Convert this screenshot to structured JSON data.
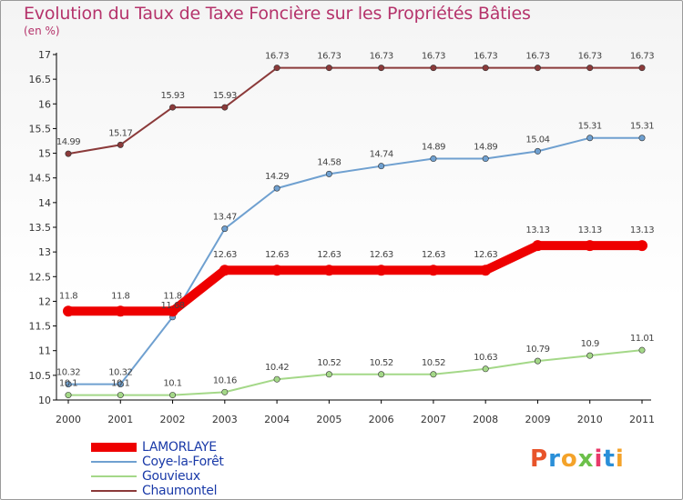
{
  "title": "Evolution du Taux de Taxe Foncière sur les Propriétés Bâties",
  "subtitle": "(en %)",
  "logo": {
    "text": "Proxiti",
    "colors": [
      "#e8542a",
      "#2a8fd8",
      "#f4a32a",
      "#6cc04a",
      "#e83a6a",
      "#2a8fd8",
      "#f4a32a"
    ]
  },
  "chart_data": {
    "type": "line",
    "title": "Evolution du Taux de Taxe Foncière sur les Propriétés Bâties",
    "ylabel": "(en %)",
    "xlabel": "",
    "x": [
      "2000",
      "2001",
      "2002",
      "2003",
      "2004",
      "2005",
      "2006",
      "2007",
      "2008",
      "2009",
      "2010",
      "2011"
    ],
    "ylim": [
      10,
      17
    ],
    "yticks": [
      "10",
      "10.5",
      "11",
      "11.5",
      "12",
      "12.5",
      "13",
      "13.5",
      "14",
      "14.5",
      "15",
      "15.5",
      "16",
      "16.5",
      "17"
    ],
    "grid": false,
    "legend": "bottom-left",
    "series": [
      {
        "name": "LAMORLAYE",
        "color": "#ee0000",
        "width": 10,
        "values": [
          11.8,
          11.8,
          11.8,
          12.63,
          12.63,
          12.63,
          12.63,
          12.63,
          12.63,
          13.13,
          13.13,
          13.13
        ],
        "labels": [
          "11.8",
          "11.8",
          "11.8",
          "12.63",
          "12.63",
          "12.63",
          "12.63",
          "12.63",
          "12.63",
          "13.13",
          "13.13",
          "13.13"
        ]
      },
      {
        "name": "Coye-la-Forêt",
        "color": "#6fa0d0",
        "width": 2,
        "values": [
          10.32,
          10.32,
          11.68,
          13.47,
          14.29,
          14.58,
          14.74,
          14.89,
          14.89,
          15.04,
          15.31,
          15.31
        ],
        "labels": [
          "10.32",
          "10.32",
          "11.68",
          "13.47",
          "14.29",
          "14.58",
          "14.74",
          "14.89",
          "14.89",
          "15.04",
          "15.31",
          "15.31"
        ]
      },
      {
        "name": "Gouvieux",
        "color": "#a4d888",
        "width": 2,
        "values": [
          10.1,
          10.1,
          10.1,
          10.16,
          10.42,
          10.52,
          10.52,
          10.52,
          10.63,
          10.79,
          10.9,
          11.01
        ],
        "labels": [
          "10.1",
          "10.1",
          "10.1",
          "10.16",
          "10.42",
          "10.52",
          "10.52",
          "10.52",
          "10.63",
          "10.79",
          "10.9",
          "11.01"
        ]
      },
      {
        "name": "Chaumontel",
        "color": "#8b3a3a",
        "width": 2,
        "values": [
          14.99,
          15.17,
          15.93,
          15.93,
          16.73,
          16.73,
          16.73,
          16.73,
          16.73,
          16.73,
          16.73,
          16.73
        ],
        "labels": [
          "14.99",
          "15.17",
          "15.93",
          "15.93",
          "16.73",
          "16.73",
          "16.73",
          "16.73",
          "16.73",
          "16.73",
          "16.73",
          "16.73"
        ]
      }
    ]
  }
}
